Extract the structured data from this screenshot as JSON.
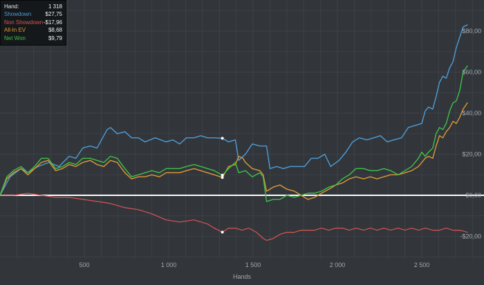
{
  "window": {
    "bg_color": "#32363b",
    "grid_color": "#3c4147",
    "axis_text_color": "#a2a8ae",
    "zero_line_color": "#ffffff",
    "legend_bg_color": "#15181a"
  },
  "legend": {
    "rows": [
      {
        "label": "Hand:",
        "value": "1 318",
        "color": "#e7eaec"
      },
      {
        "label": "Showdown",
        "value": "$27,75",
        "color": "#4f9cd6"
      },
      {
        "label": "Non Showdown",
        "value": "-$17,96",
        "color": "#d95454"
      },
      {
        "label": "All-In EV",
        "value": "$8,68",
        "color": "#dd9a33"
      },
      {
        "label": "Net Won",
        "value": "$9,79",
        "color": "#3fc14a"
      }
    ]
  },
  "chart_data": {
    "type": "line",
    "title": "",
    "xlabel": "Hands",
    "ylabel": "",
    "x_range": [
      0,
      2870
    ],
    "y_range": [
      -31,
      95
    ],
    "grid": {
      "on": true,
      "x_step_hands": 100,
      "y_step_dollars": 10
    },
    "zero_line": true,
    "hover_hand": 1318,
    "marker_color": "#ffffff",
    "x_ticks": [
      {
        "value": 500,
        "label": "500"
      },
      {
        "value": 1000,
        "label": "1 000"
      },
      {
        "value": 1500,
        "label": "1 500"
      },
      {
        "value": 2000,
        "label": "2 000"
      },
      {
        "value": 2500,
        "label": "2 500"
      }
    ],
    "y_ticks": [
      {
        "value": 80,
        "label": "$80,00"
      },
      {
        "value": 60,
        "label": "$60,00"
      },
      {
        "value": 40,
        "label": "$40,00"
      },
      {
        "value": 20,
        "label": "$20,00"
      },
      {
        "value": 0,
        "label": "$0,00"
      },
      {
        "value": -20,
        "label": "-$20,00"
      }
    ],
    "series": [
      {
        "name": "Non Showdown",
        "color": "#d95454",
        "width": 1.2,
        "points": [
          [
            0,
            0
          ],
          [
            80,
            0
          ],
          [
            165,
            1
          ],
          [
            245,
            0
          ],
          [
            330,
            -1
          ],
          [
            410,
            -1
          ],
          [
            490,
            -2
          ],
          [
            575,
            -3
          ],
          [
            655,
            -4
          ],
          [
            740,
            -6
          ],
          [
            820,
            -7
          ],
          [
            900,
            -9
          ],
          [
            985,
            -12
          ],
          [
            1065,
            -13
          ],
          [
            1150,
            -12
          ],
          [
            1230,
            -14
          ],
          [
            1270,
            -16
          ],
          [
            1318,
            -17.96
          ],
          [
            1355,
            -16
          ],
          [
            1395,
            -16
          ],
          [
            1435,
            -17
          ],
          [
            1475,
            -16
          ],
          [
            1520,
            -18
          ],
          [
            1560,
            -21
          ],
          [
            1580,
            -22
          ],
          [
            1620,
            -21
          ],
          [
            1660,
            -19
          ],
          [
            1700,
            -18
          ],
          [
            1745,
            -18
          ],
          [
            1785,
            -17
          ],
          [
            1825,
            -17
          ],
          [
            1865,
            -17
          ],
          [
            1905,
            -16
          ],
          [
            1950,
            -17
          ],
          [
            1990,
            -16
          ],
          [
            2030,
            -16
          ],
          [
            2070,
            -17
          ],
          [
            2110,
            -16
          ],
          [
            2155,
            -17
          ],
          [
            2195,
            -16
          ],
          [
            2235,
            -17
          ],
          [
            2275,
            -16
          ],
          [
            2315,
            -17
          ],
          [
            2360,
            -16
          ],
          [
            2400,
            -17
          ],
          [
            2440,
            -16
          ],
          [
            2480,
            -17
          ],
          [
            2520,
            -16
          ],
          [
            2565,
            -17
          ],
          [
            2605,
            -17
          ],
          [
            2645,
            -16
          ],
          [
            2685,
            -17
          ],
          [
            2725,
            -17
          ],
          [
            2770,
            -18
          ]
        ]
      },
      {
        "name": "Showdown",
        "color": "#4f9cd6",
        "width": 1.4,
        "points": [
          [
            0,
            0
          ],
          [
            60,
            9
          ],
          [
            125,
            13
          ],
          [
            165,
            11
          ],
          [
            225,
            14
          ],
          [
            290,
            16
          ],
          [
            350,
            14
          ],
          [
            410,
            19
          ],
          [
            450,
            18
          ],
          [
            490,
            23
          ],
          [
            535,
            24
          ],
          [
            575,
            23
          ],
          [
            635,
            32
          ],
          [
            655,
            33
          ],
          [
            695,
            30
          ],
          [
            740,
            31
          ],
          [
            780,
            28
          ],
          [
            820,
            28
          ],
          [
            860,
            26
          ],
          [
            920,
            28
          ],
          [
            985,
            26
          ],
          [
            1025,
            27
          ],
          [
            1065,
            25
          ],
          [
            1105,
            28
          ],
          [
            1150,
            28
          ],
          [
            1190,
            29
          ],
          [
            1230,
            28
          ],
          [
            1270,
            28
          ],
          [
            1318,
            27.75
          ],
          [
            1355,
            26
          ],
          [
            1395,
            27
          ],
          [
            1415,
            17
          ],
          [
            1455,
            20
          ],
          [
            1495,
            25
          ],
          [
            1540,
            24
          ],
          [
            1580,
            24
          ],
          [
            1600,
            13
          ],
          [
            1640,
            14
          ],
          [
            1680,
            13
          ],
          [
            1720,
            14
          ],
          [
            1765,
            14
          ],
          [
            1805,
            14
          ],
          [
            1845,
            18
          ],
          [
            1885,
            18
          ],
          [
            1925,
            20
          ],
          [
            1960,
            14
          ],
          [
            2010,
            17
          ],
          [
            2050,
            21
          ],
          [
            2090,
            26
          ],
          [
            2130,
            28
          ],
          [
            2175,
            27
          ],
          [
            2215,
            28
          ],
          [
            2255,
            29
          ],
          [
            2295,
            26
          ],
          [
            2335,
            27
          ],
          [
            2380,
            28
          ],
          [
            2420,
            33
          ],
          [
            2460,
            34
          ],
          [
            2500,
            35
          ],
          [
            2520,
            41
          ],
          [
            2540,
            43
          ],
          [
            2565,
            42
          ],
          [
            2585,
            48
          ],
          [
            2605,
            55
          ],
          [
            2625,
            58
          ],
          [
            2645,
            57
          ],
          [
            2665,
            62
          ],
          [
            2685,
            65
          ],
          [
            2705,
            72
          ],
          [
            2725,
            77
          ],
          [
            2745,
            82
          ],
          [
            2770,
            83
          ]
        ]
      },
      {
        "name": "All-In EV",
        "color": "#dd9a33",
        "width": 1.4,
        "points": [
          [
            0,
            0
          ],
          [
            40,
            8
          ],
          [
            80,
            11
          ],
          [
            125,
            13
          ],
          [
            165,
            10
          ],
          [
            205,
            13
          ],
          [
            245,
            16
          ],
          [
            285,
            17
          ],
          [
            330,
            12
          ],
          [
            370,
            13
          ],
          [
            410,
            15
          ],
          [
            450,
            14
          ],
          [
            490,
            16
          ],
          [
            535,
            17
          ],
          [
            575,
            15
          ],
          [
            615,
            14
          ],
          [
            655,
            17
          ],
          [
            695,
            16
          ],
          [
            740,
            11
          ],
          [
            780,
            8
          ],
          [
            820,
            9
          ],
          [
            860,
            9
          ],
          [
            900,
            10
          ],
          [
            945,
            9
          ],
          [
            985,
            11
          ],
          [
            1025,
            11
          ],
          [
            1065,
            11
          ],
          [
            1105,
            12
          ],
          [
            1150,
            13
          ],
          [
            1190,
            12
          ],
          [
            1230,
            11
          ],
          [
            1270,
            10
          ],
          [
            1318,
            8.68
          ],
          [
            1355,
            14
          ],
          [
            1395,
            15
          ],
          [
            1415,
            19
          ],
          [
            1440,
            18
          ],
          [
            1455,
            16
          ],
          [
            1495,
            13
          ],
          [
            1540,
            12
          ],
          [
            1560,
            10
          ],
          [
            1580,
            2
          ],
          [
            1620,
            4
          ],
          [
            1660,
            5
          ],
          [
            1700,
            3
          ],
          [
            1745,
            2
          ],
          [
            1785,
            0
          ],
          [
            1825,
            -2
          ],
          [
            1865,
            -1
          ],
          [
            1905,
            1
          ],
          [
            1950,
            3
          ],
          [
            1990,
            5
          ],
          [
            2030,
            6
          ],
          [
            2070,
            8
          ],
          [
            2110,
            9
          ],
          [
            2155,
            8
          ],
          [
            2195,
            9
          ],
          [
            2235,
            8
          ],
          [
            2275,
            9
          ],
          [
            2315,
            10
          ],
          [
            2360,
            10
          ],
          [
            2400,
            11
          ],
          [
            2440,
            12
          ],
          [
            2480,
            14
          ],
          [
            2500,
            16
          ],
          [
            2520,
            18
          ],
          [
            2540,
            19
          ],
          [
            2565,
            18
          ],
          [
            2585,
            24
          ],
          [
            2605,
            29
          ],
          [
            2625,
            28
          ],
          [
            2645,
            31
          ],
          [
            2665,
            33
          ],
          [
            2685,
            36
          ],
          [
            2705,
            35
          ],
          [
            2725,
            38
          ],
          [
            2745,
            42
          ],
          [
            2770,
            45
          ]
        ]
      },
      {
        "name": "Net Won",
        "color": "#3fc14a",
        "width": 1.4,
        "points": [
          [
            0,
            0
          ],
          [
            40,
            9
          ],
          [
            80,
            12
          ],
          [
            125,
            14
          ],
          [
            165,
            11
          ],
          [
            205,
            14
          ],
          [
            245,
            18
          ],
          [
            285,
            18
          ],
          [
            330,
            13
          ],
          [
            370,
            14
          ],
          [
            410,
            16
          ],
          [
            450,
            15
          ],
          [
            490,
            18
          ],
          [
            535,
            18
          ],
          [
            575,
            17
          ],
          [
            615,
            16
          ],
          [
            655,
            19
          ],
          [
            695,
            18
          ],
          [
            740,
            13
          ],
          [
            780,
            9
          ],
          [
            820,
            10
          ],
          [
            860,
            11
          ],
          [
            900,
            12
          ],
          [
            945,
            11
          ],
          [
            985,
            13
          ],
          [
            1025,
            13
          ],
          [
            1065,
            13
          ],
          [
            1105,
            14
          ],
          [
            1150,
            15
          ],
          [
            1190,
            14
          ],
          [
            1230,
            13
          ],
          [
            1270,
            12
          ],
          [
            1318,
            9.79
          ],
          [
            1355,
            13
          ],
          [
            1395,
            16
          ],
          [
            1415,
            11
          ],
          [
            1455,
            12
          ],
          [
            1495,
            9
          ],
          [
            1540,
            11
          ],
          [
            1560,
            9
          ],
          [
            1580,
            -3
          ],
          [
            1620,
            -2
          ],
          [
            1660,
            -2
          ],
          [
            1700,
            0
          ],
          [
            1745,
            -1
          ],
          [
            1785,
            0
          ],
          [
            1825,
            1
          ],
          [
            1865,
            1
          ],
          [
            1905,
            2
          ],
          [
            1950,
            4
          ],
          [
            1990,
            5
          ],
          [
            2030,
            8
          ],
          [
            2070,
            10
          ],
          [
            2110,
            13
          ],
          [
            2155,
            13
          ],
          [
            2195,
            12
          ],
          [
            2235,
            12
          ],
          [
            2275,
            13
          ],
          [
            2315,
            12
          ],
          [
            2360,
            10
          ],
          [
            2400,
            12
          ],
          [
            2440,
            14
          ],
          [
            2480,
            18
          ],
          [
            2500,
            21
          ],
          [
            2520,
            19
          ],
          [
            2540,
            21
          ],
          [
            2565,
            23
          ],
          [
            2585,
            30
          ],
          [
            2605,
            33
          ],
          [
            2625,
            32
          ],
          [
            2645,
            35
          ],
          [
            2665,
            41
          ],
          [
            2685,
            45
          ],
          [
            2705,
            46
          ],
          [
            2725,
            51
          ],
          [
            2745,
            60
          ],
          [
            2770,
            63
          ]
        ]
      }
    ]
  }
}
